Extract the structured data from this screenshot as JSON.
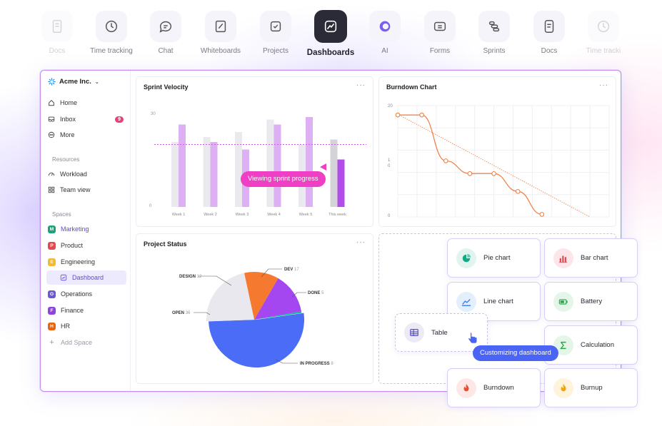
{
  "nav": [
    {
      "label": "Docs",
      "icon": "doc-icon",
      "state": "fade"
    },
    {
      "label": "Time tracking",
      "icon": "clock-icon",
      "state": ""
    },
    {
      "label": "Chat",
      "icon": "chat-icon",
      "state": ""
    },
    {
      "label": "Whiteboards",
      "icon": "whiteboard-icon",
      "state": ""
    },
    {
      "label": "Projects",
      "icon": "checkbox-icon",
      "state": ""
    },
    {
      "label": "Dashboards",
      "icon": "dashboard-icon",
      "state": "active"
    },
    {
      "label": "AI",
      "icon": "ai-icon",
      "state": ""
    },
    {
      "label": "Forms",
      "icon": "forms-icon",
      "state": ""
    },
    {
      "label": "Sprints",
      "icon": "sprints-icon",
      "state": ""
    },
    {
      "label": "Docs",
      "icon": "doc-icon",
      "state": ""
    },
    {
      "label": "Time tracki",
      "icon": "clock-icon",
      "state": "fade"
    }
  ],
  "sidebar": {
    "workspace": "Acme Inc.",
    "items": [
      {
        "label": "Home",
        "icon": "home-icon"
      },
      {
        "label": "Inbox",
        "icon": "inbox-icon",
        "badge": "9"
      },
      {
        "label": "More",
        "icon": "more-icon"
      }
    ],
    "resources_heading": "Resources",
    "resources": [
      {
        "label": "Workload",
        "icon": "gauge-icon"
      },
      {
        "label": "Team view",
        "icon": "grid-icon"
      }
    ],
    "spaces_heading": "Spaces",
    "spaces": [
      {
        "label": "Marketing",
        "letter": "M",
        "color": "#1aa37a"
      },
      {
        "label": "Product",
        "letter": "P",
        "color": "#e5484d"
      },
      {
        "label": "Engineering",
        "letter": "E",
        "color": "#f5b82e"
      },
      {
        "label": "Dashboard",
        "letter": "",
        "color": ""
      },
      {
        "label": "Operations",
        "letter": "O",
        "color": "#6a5acd"
      },
      {
        "label": "Finance",
        "letter": "F",
        "color": "#8e44d8"
      },
      {
        "label": "HR",
        "letter": "H",
        "color": "#e8650e"
      }
    ],
    "add_space": "Add Space"
  },
  "cards": {
    "velocity_title": "Sprint Velocity",
    "burndown_title": "Burndown Chart",
    "status_title": "Project Status",
    "more": "···"
  },
  "chart_data": [
    {
      "type": "bar",
      "title": "Sprint Velocity",
      "categories": [
        "Week 1",
        "Week 2",
        "Week 3",
        "Week 4",
        "Week 5",
        "This week"
      ],
      "y_tick_labels": [
        "30",
        "0"
      ],
      "series": [
        {
          "values": [
            26,
            28,
            30,
            35,
            25,
            27
          ],
          "color": "#e9e9ee"
        },
        {
          "values": [
            33,
            26,
            23,
            33,
            36,
            19
          ],
          "color": "#dcb0f2"
        }
      ],
      "highlight_color": "#b24ce8",
      "reference_line": 25,
      "ylim": [
        0,
        40
      ]
    },
    {
      "type": "line",
      "title": "Burndown Chart",
      "y_tick_labels": [
        "20",
        "1",
        "0",
        "0"
      ],
      "x": [
        0,
        1,
        2,
        3,
        4,
        5,
        6
      ],
      "values": [
        20,
        20,
        11,
        8.5,
        8.5,
        5,
        0.5
      ],
      "ideal_line": [
        [
          0,
          20
        ],
        [
          8,
          0
        ]
      ],
      "color": "#f07a3c"
    },
    {
      "type": "pie",
      "title": "Project Status",
      "slices": [
        {
          "label": "IN PROGRESS",
          "value": 8,
          "color": "#4a6cf7"
        },
        {
          "label": "OPEN",
          "value": 36,
          "color": "#e8e8ee"
        },
        {
          "label": "DESIGN",
          "value": 12,
          "color": "#f57a30"
        },
        {
          "label": "DEV",
          "value": 17,
          "color": "#a447f0"
        },
        {
          "label": "DONE",
          "value": 5,
          "color": "#13b59a"
        }
      ]
    }
  ],
  "pie_labels": {
    "design_name": "DESIGN",
    "design_val": "12",
    "dev_name": "DEV",
    "dev_val": "17",
    "done_name": "DONE",
    "done_val": "5",
    "open_name": "OPEN",
    "open_val": "36",
    "prog_name": "IN PROGRESS",
    "prog_val": "8"
  },
  "tooltips": {
    "velocity": "Viewing sprint progress",
    "customize": "Customizing dashboard"
  },
  "widgets": [
    {
      "label": "Pie chart",
      "icon": "pie-chart-icon",
      "bg": "#e2f4ef",
      "fg": "#17a884"
    },
    {
      "label": "Bar chart",
      "icon": "bar-chart-icon",
      "bg": "#fde6ea",
      "fg": "#e5484d"
    },
    {
      "label": "Line chart",
      "icon": "line-chart-icon",
      "bg": "#e4effd",
      "fg": "#3b7de8"
    },
    {
      "label": "Battery",
      "icon": "battery-icon",
      "bg": "#e4f6e8",
      "fg": "#28a745"
    },
    {
      "label": "Calculation",
      "icon": "calculation-icon",
      "bg": "#e4f6e8",
      "fg": "#28a745"
    },
    {
      "label": "Burndown",
      "icon": "flame-icon",
      "bg": "#fde8e6",
      "fg": "#ea4b2f"
    },
    {
      "label": "Burnup",
      "icon": "burnup-icon",
      "bg": "#fff3dc",
      "fg": "#f0a50a"
    }
  ],
  "table_widget": {
    "label": "Table",
    "icon": "table-icon"
  }
}
